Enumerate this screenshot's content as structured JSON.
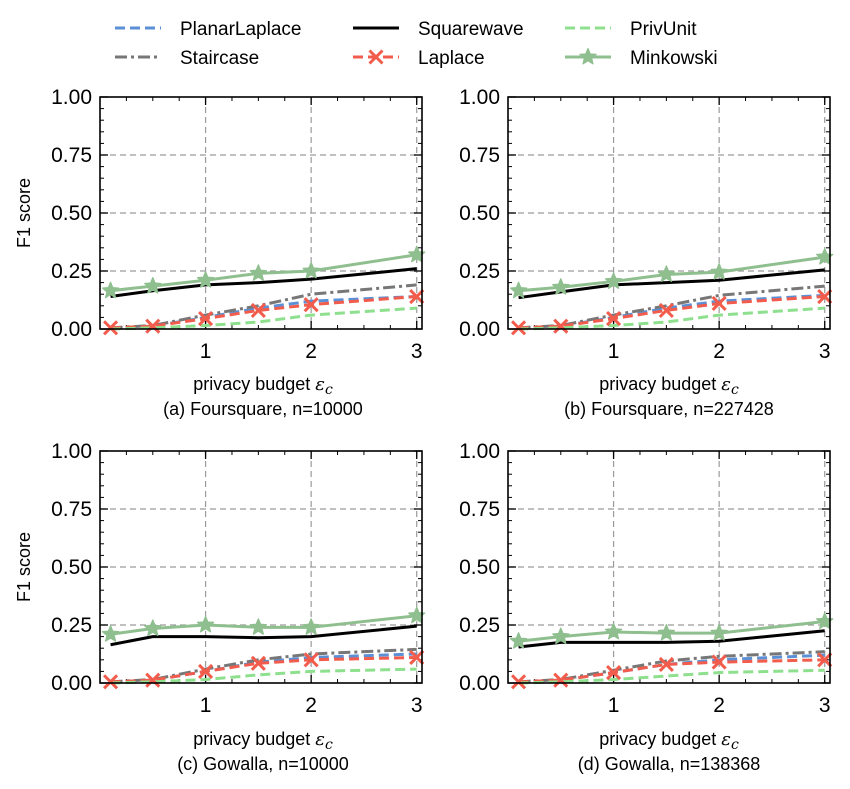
{
  "chart_data": [
    {
      "type": "line",
      "caption": "(a) Foursquare, n=10000",
      "xlabel": "privacy budget",
      "xlabel_symbol": "ε",
      "xlabel_subscript": "c",
      "ylabel": "F1 score",
      "xlim": [
        0.0,
        3.05
      ],
      "ylim": [
        0.0,
        1.0
      ],
      "xticks": [
        1,
        2,
        3
      ],
      "yticks": [
        0.0,
        0.25,
        0.5,
        0.75,
        1.0
      ],
      "ytick_labels": [
        "0.00",
        "0.25",
        "0.50",
        "0.75",
        "1.00"
      ],
      "grid": true,
      "series": [
        {
          "name": "PlanarLaplace",
          "x": [
            0.1,
            0.5,
            1.0,
            1.5,
            2.0,
            3.0
          ],
          "y": [
            0.005,
            0.012,
            0.05,
            0.09,
            0.12,
            0.14
          ]
        },
        {
          "name": "Staircase",
          "x": [
            0.1,
            0.5,
            1.0,
            1.5,
            2.0,
            3.0
          ],
          "y": [
            0.005,
            0.015,
            0.06,
            0.1,
            0.15,
            0.19
          ]
        },
        {
          "name": "Squarewave",
          "x": [
            0.1,
            0.5,
            1.0,
            1.5,
            2.0,
            3.0
          ],
          "y": [
            0.14,
            0.165,
            0.19,
            0.2,
            0.215,
            0.26
          ]
        },
        {
          "name": "Laplace",
          "x": [
            0.1,
            0.5,
            1.0,
            1.5,
            2.0,
            3.0
          ],
          "y": [
            0.005,
            0.012,
            0.045,
            0.08,
            0.105,
            0.14
          ]
        },
        {
          "name": "PrivUnit",
          "x": [
            0.1,
            0.5,
            1.0,
            1.5,
            2.0,
            3.0
          ],
          "y": [
            0.0,
            0.005,
            0.015,
            0.03,
            0.06,
            0.09
          ]
        },
        {
          "name": "Minkowski",
          "x": [
            0.1,
            0.5,
            1.0,
            1.5,
            2.0,
            3.0
          ],
          "y": [
            0.165,
            0.185,
            0.21,
            0.24,
            0.25,
            0.32
          ]
        }
      ]
    },
    {
      "type": "line",
      "caption": "(b) Foursquare, n=227428",
      "xlabel": "privacy budget",
      "xlabel_symbol": "ε",
      "xlabel_subscript": "c",
      "ylabel": "",
      "xlim": [
        0.0,
        3.05
      ],
      "ylim": [
        0.0,
        1.0
      ],
      "xticks": [
        1,
        2,
        3
      ],
      "yticks": [
        0.0,
        0.25,
        0.5,
        0.75,
        1.0
      ],
      "ytick_labels": [
        "0.00",
        "0.25",
        "0.50",
        "0.75",
        "1.00"
      ],
      "grid": true,
      "series": [
        {
          "name": "PlanarLaplace",
          "x": [
            0.1,
            0.5,
            1.0,
            1.5,
            2.0,
            3.0
          ],
          "y": [
            0.005,
            0.012,
            0.05,
            0.09,
            0.12,
            0.145
          ]
        },
        {
          "name": "Staircase",
          "x": [
            0.1,
            0.5,
            1.0,
            1.5,
            2.0,
            3.0
          ],
          "y": [
            0.005,
            0.015,
            0.06,
            0.1,
            0.145,
            0.185
          ]
        },
        {
          "name": "Squarewave",
          "x": [
            0.1,
            0.5,
            1.0,
            1.5,
            2.0,
            3.0
          ],
          "y": [
            0.135,
            0.16,
            0.19,
            0.2,
            0.21,
            0.255
          ]
        },
        {
          "name": "Laplace",
          "x": [
            0.1,
            0.5,
            1.0,
            1.5,
            2.0,
            3.0
          ],
          "y": [
            0.005,
            0.012,
            0.045,
            0.08,
            0.11,
            0.14
          ]
        },
        {
          "name": "PrivUnit",
          "x": [
            0.1,
            0.5,
            1.0,
            1.5,
            2.0,
            3.0
          ],
          "y": [
            0.0,
            0.005,
            0.015,
            0.03,
            0.06,
            0.09
          ]
        },
        {
          "name": "Minkowski",
          "x": [
            0.1,
            0.5,
            1.0,
            1.5,
            2.0,
            3.0
          ],
          "y": [
            0.165,
            0.18,
            0.205,
            0.235,
            0.245,
            0.31
          ]
        }
      ]
    },
    {
      "type": "line",
      "caption": "(c) Gowalla, n=10000",
      "xlabel": "privacy budget",
      "xlabel_symbol": "ε",
      "xlabel_subscript": "c",
      "ylabel": "F1 score",
      "xlim": [
        0.0,
        3.05
      ],
      "ylim": [
        0.0,
        1.0
      ],
      "xticks": [
        1,
        2,
        3
      ],
      "yticks": [
        0.0,
        0.25,
        0.5,
        0.75,
        1.0
      ],
      "ytick_labels": [
        "0.00",
        "0.25",
        "0.50",
        "0.75",
        "1.00"
      ],
      "grid": true,
      "series": [
        {
          "name": "PlanarLaplace",
          "x": [
            0.1,
            0.5,
            1.0,
            1.5,
            2.0,
            3.0
          ],
          "y": [
            0.005,
            0.012,
            0.05,
            0.09,
            0.11,
            0.125
          ]
        },
        {
          "name": "Staircase",
          "x": [
            0.1,
            0.5,
            1.0,
            1.5,
            2.0,
            3.0
          ],
          "y": [
            0.005,
            0.015,
            0.06,
            0.1,
            0.125,
            0.145
          ]
        },
        {
          "name": "Squarewave",
          "x": [
            0.1,
            0.5,
            1.0,
            1.5,
            2.0,
            3.0
          ],
          "y": [
            0.165,
            0.2,
            0.2,
            0.195,
            0.2,
            0.245
          ]
        },
        {
          "name": "Laplace",
          "x": [
            0.1,
            0.5,
            1.0,
            1.5,
            2.0,
            3.0
          ],
          "y": [
            0.005,
            0.012,
            0.05,
            0.085,
            0.1,
            0.11
          ]
        },
        {
          "name": "PrivUnit",
          "x": [
            0.1,
            0.5,
            1.0,
            1.5,
            2.0,
            3.0
          ],
          "y": [
            0.0,
            0.005,
            0.015,
            0.035,
            0.05,
            0.06
          ]
        },
        {
          "name": "Minkowski",
          "x": [
            0.1,
            0.5,
            1.0,
            1.5,
            2.0,
            3.0
          ],
          "y": [
            0.21,
            0.235,
            0.25,
            0.24,
            0.24,
            0.29
          ]
        }
      ]
    },
    {
      "type": "line",
      "caption": "(d) Gowalla, n=138368",
      "xlabel": "privacy budget",
      "xlabel_symbol": "ε",
      "xlabel_subscript": "c",
      "ylabel": "",
      "xlim": [
        0.0,
        3.05
      ],
      "ylim": [
        0.0,
        1.0
      ],
      "xticks": [
        1,
        2,
        3
      ],
      "yticks": [
        0.0,
        0.25,
        0.5,
        0.75,
        1.0
      ],
      "ytick_labels": [
        "0.00",
        "0.25",
        "0.50",
        "0.75",
        "1.00"
      ],
      "grid": true,
      "series": [
        {
          "name": "PlanarLaplace",
          "x": [
            0.1,
            0.5,
            1.0,
            1.5,
            2.0,
            3.0
          ],
          "y": [
            0.005,
            0.012,
            0.045,
            0.08,
            0.1,
            0.12
          ]
        },
        {
          "name": "Staircase",
          "x": [
            0.1,
            0.5,
            1.0,
            1.5,
            2.0,
            3.0
          ],
          "y": [
            0.005,
            0.015,
            0.055,
            0.095,
            0.115,
            0.135
          ]
        },
        {
          "name": "Squarewave",
          "x": [
            0.1,
            0.5,
            1.0,
            1.5,
            2.0,
            3.0
          ],
          "y": [
            0.155,
            0.175,
            0.175,
            0.175,
            0.18,
            0.225
          ]
        },
        {
          "name": "Laplace",
          "x": [
            0.1,
            0.5,
            1.0,
            1.5,
            2.0,
            3.0
          ],
          "y": [
            0.005,
            0.012,
            0.045,
            0.08,
            0.09,
            0.1
          ]
        },
        {
          "name": "PrivUnit",
          "x": [
            0.1,
            0.5,
            1.0,
            1.5,
            2.0,
            3.0
          ],
          "y": [
            0.0,
            0.005,
            0.015,
            0.03,
            0.045,
            0.055
          ]
        },
        {
          "name": "Minkowski",
          "x": [
            0.1,
            0.5,
            1.0,
            1.5,
            2.0,
            3.0
          ],
          "y": [
            0.18,
            0.2,
            0.22,
            0.215,
            0.215,
            0.265
          ]
        }
      ]
    }
  ],
  "legend": {
    "placement": "top-center",
    "entries": [
      {
        "name": "PlanarLaplace",
        "color": "#5b8fd6",
        "style": "dashed",
        "marker": "none"
      },
      {
        "name": "Staircase",
        "color": "#777777",
        "style": "dashdot",
        "marker": "none"
      },
      {
        "name": "Squarewave",
        "color": "#000000",
        "style": "solid",
        "marker": "none"
      },
      {
        "name": "Laplace",
        "color": "#f25c4c",
        "style": "dashed",
        "marker": "x"
      },
      {
        "name": "PrivUnit",
        "color": "#8ee08e",
        "style": "dashed",
        "marker": "none"
      },
      {
        "name": "Minkowski",
        "color": "#8fbf8f",
        "style": "solid",
        "marker": "star"
      }
    ]
  }
}
